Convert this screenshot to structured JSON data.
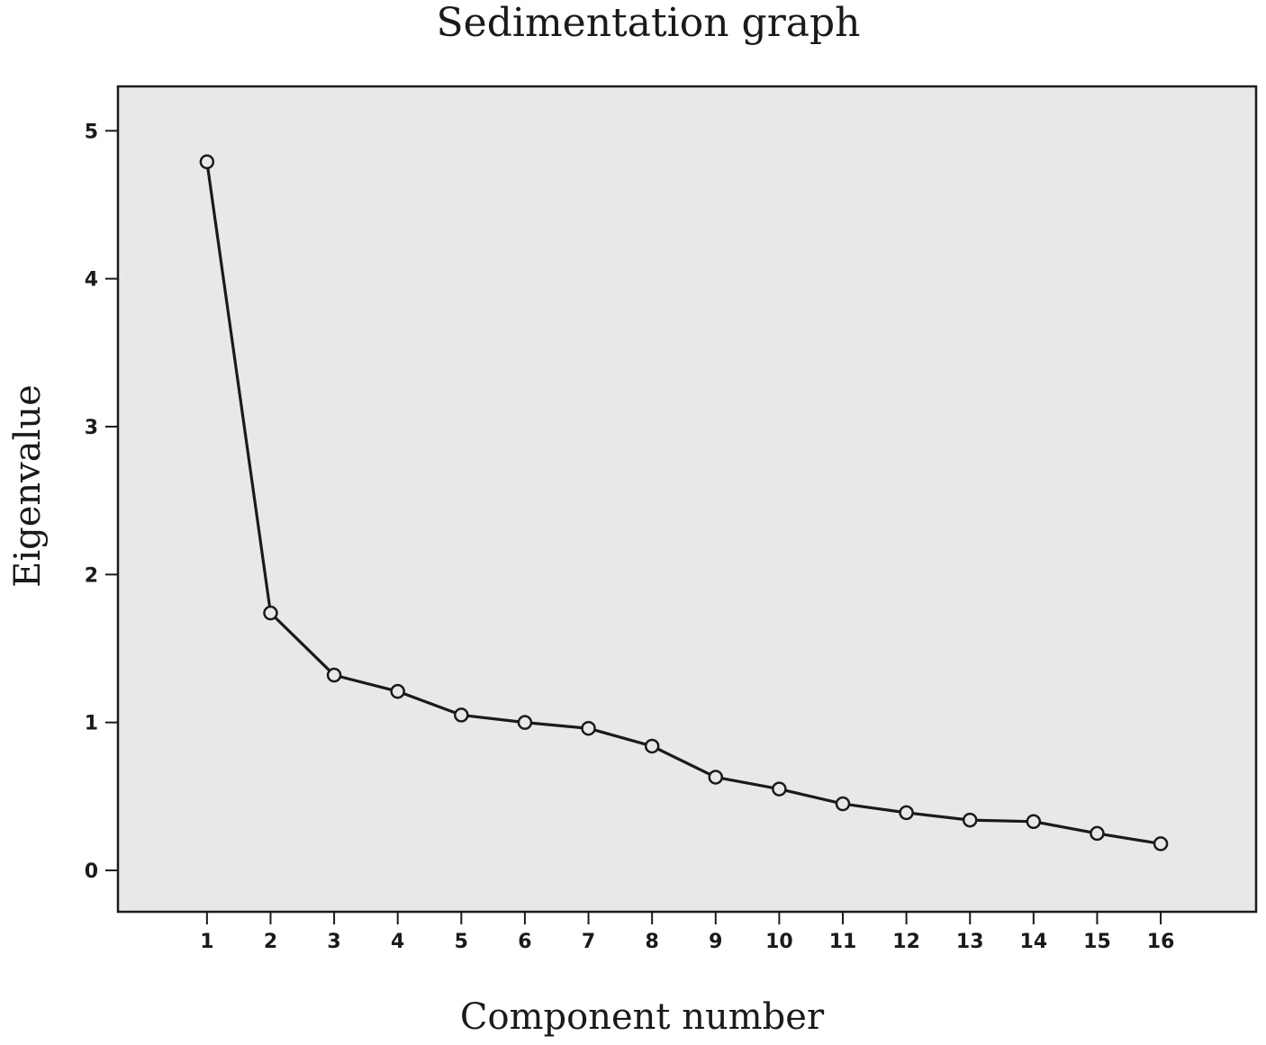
{
  "chart_data": {
    "type": "line",
    "title": "Sedimentation graph",
    "xlabel": "Component number",
    "ylabel": "Eigenvalue",
    "x": [
      1,
      2,
      3,
      4,
      5,
      6,
      7,
      8,
      9,
      10,
      11,
      12,
      13,
      14,
      15,
      16
    ],
    "y_ticks": [
      0,
      1,
      2,
      3,
      4,
      5
    ],
    "series": [
      {
        "values": [
          4.79,
          1.74,
          1.32,
          1.21,
          1.05,
          1.0,
          0.96,
          0.84,
          0.63,
          0.55,
          0.45,
          0.39,
          0.34,
          0.33,
          0.25,
          0.18
        ]
      }
    ],
    "ylim": [
      -0.28,
      5.3
    ],
    "xlim": [
      -0.4,
      17.5
    ],
    "grid": false,
    "colors": {
      "plot_background": "#e8e8e8",
      "line": "#1a1a1a",
      "frame": "#1a1a1a"
    }
  }
}
